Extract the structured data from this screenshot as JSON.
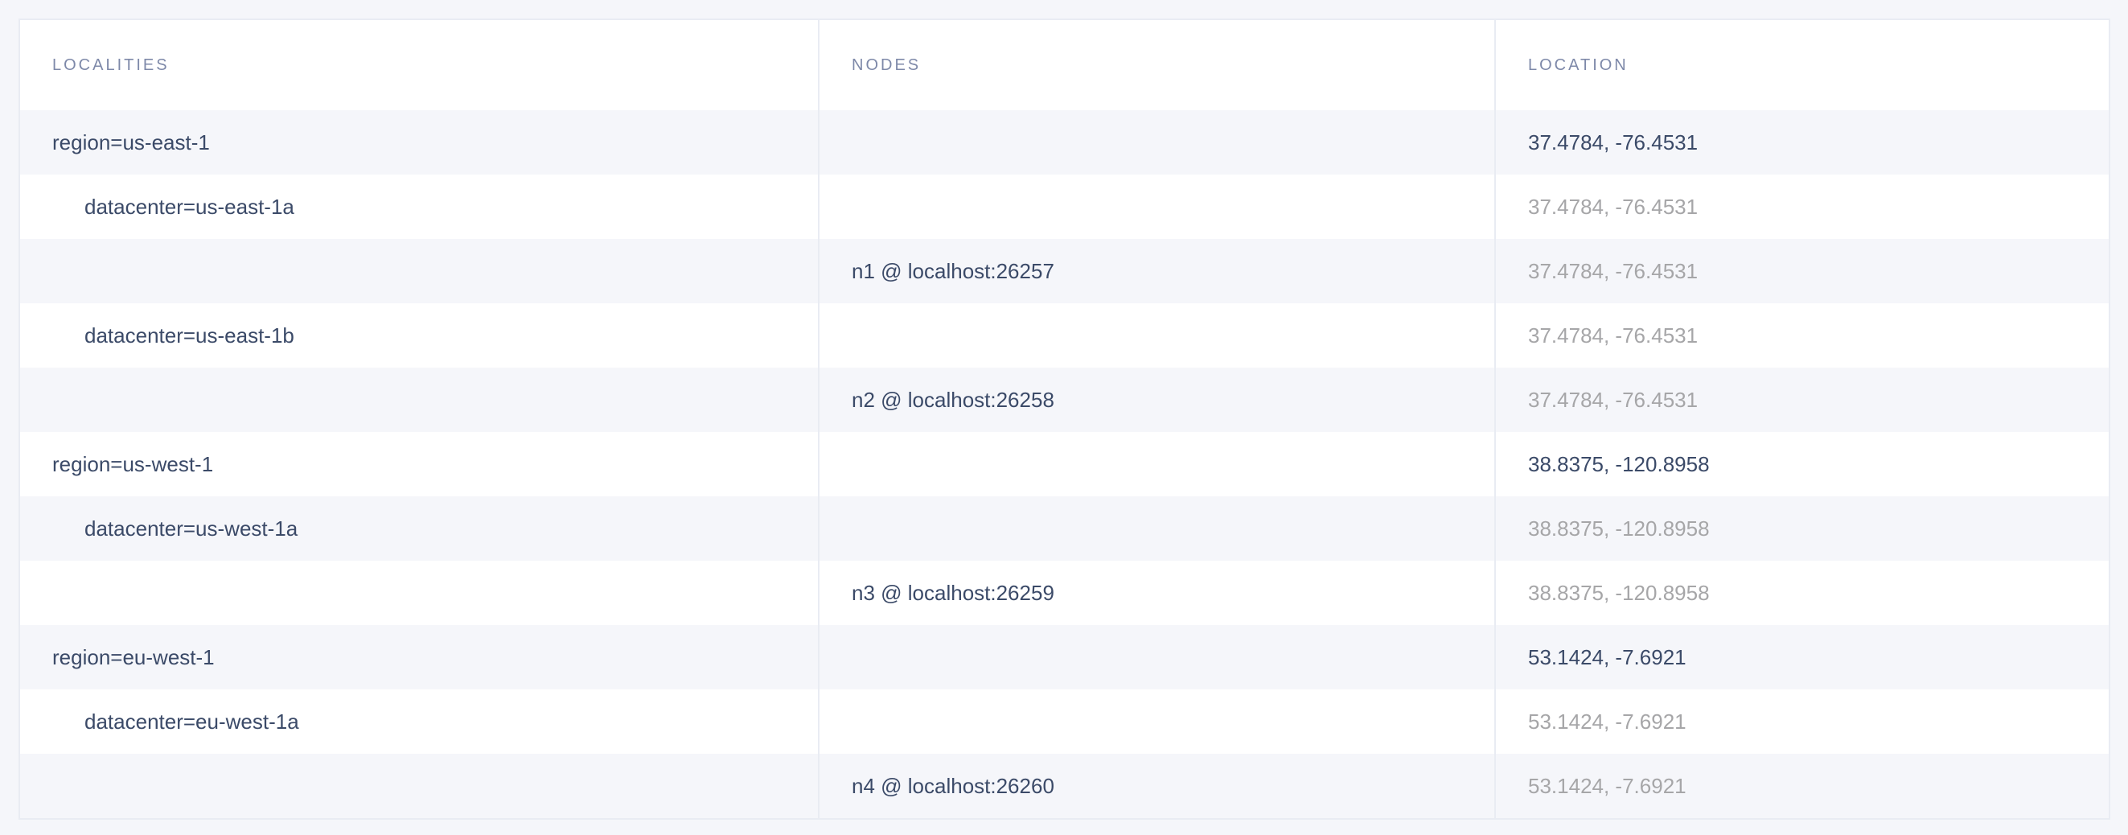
{
  "columns": [
    "LOCALITIES",
    "NODES",
    "LOCATION"
  ],
  "rows": [
    {
      "locality": "region=us-east-1",
      "node": "",
      "location": "37.4784, -76.4531",
      "level": 0
    },
    {
      "locality": "datacenter=us-east-1a",
      "node": "",
      "location": "37.4784, -76.4531",
      "level": 1
    },
    {
      "locality": "",
      "node": "n1 @ localhost:26257",
      "location": "37.4784, -76.4531",
      "level": 2
    },
    {
      "locality": "datacenter=us-east-1b",
      "node": "",
      "location": "37.4784, -76.4531",
      "level": 1
    },
    {
      "locality": "",
      "node": "n2 @ localhost:26258",
      "location": "37.4784, -76.4531",
      "level": 2
    },
    {
      "locality": "region=us-west-1",
      "node": "",
      "location": "38.8375, -120.8958",
      "level": 0
    },
    {
      "locality": "datacenter=us-west-1a",
      "node": "",
      "location": "38.8375, -120.8958",
      "level": 1
    },
    {
      "locality": "",
      "node": "n3 @ localhost:26259",
      "location": "38.8375, -120.8958",
      "level": 2
    },
    {
      "locality": "region=eu-west-1",
      "node": "",
      "location": "53.1424, -7.6921",
      "level": 0
    },
    {
      "locality": "datacenter=eu-west-1a",
      "node": "",
      "location": "53.1424, -7.6921",
      "level": 1
    },
    {
      "locality": "",
      "node": "n4 @ localhost:26260",
      "location": "53.1424, -7.6921",
      "level": 2
    }
  ],
  "colors": {
    "text": "#3b4a68",
    "header": "#7e89a9",
    "muted": "#a6a6a8",
    "stripe": "#f5f6fa",
    "border": "#e9ecf3"
  }
}
